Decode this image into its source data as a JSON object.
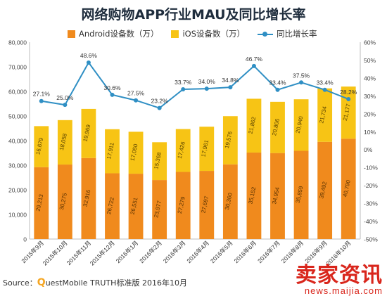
{
  "chart_data": {
    "type": "bar",
    "title": "网络购物APP行业MAU及同比增长率",
    "categories": [
      "2015年9月",
      "2015年10月",
      "2015年11月",
      "2015年12月",
      "2016年1月",
      "2016年2月",
      "2016年3月",
      "2016年4月",
      "2016年5月",
      "2016年6月",
      "2016年7月",
      "2016年8月",
      "2016年9月",
      "2016年10月"
    ],
    "series": [
      {
        "name": "Android设备数（万）",
        "kind": "bar",
        "color": "#f08a1d",
        "values": [
          29213,
          30275,
          32916,
          26722,
          26551,
          23977,
          27279,
          27697,
          30360,
          35152,
          34954,
          35859,
          39492,
          40790
        ]
      },
      {
        "name": "iOS设备数（万）",
        "kind": "bar",
        "color": "#f7c415",
        "values": [
          16679,
          18058,
          19969,
          17911,
          17050,
          15368,
          17426,
          17961,
          19576,
          21862,
          20806,
          20940,
          21734,
          21177
        ]
      },
      {
        "name": "同比增长率",
        "kind": "line",
        "axis": "right",
        "color": "#2f8fc4",
        "values": [
          27.1,
          25.0,
          48.6,
          30.6,
          27.5,
          23.2,
          33.7,
          34.0,
          34.8,
          46.7,
          33.4,
          37.5,
          33.4,
          28.2
        ]
      }
    ],
    "bar_value_labels": {
      "Android": [
        "29,213",
        "30,275",
        "32,916",
        "26,722",
        "26,551",
        "23,977",
        "27,279",
        "27,697",
        "30,360",
        "35,152",
        "34,954",
        "35,859",
        "39,492",
        "40,790"
      ],
      "iOS": [
        "16,679",
        "18,058",
        "19,969",
        "17,911",
        "17,050",
        "15,368",
        "17,426",
        "17,961",
        "19,576",
        "21,862",
        "20,806",
        "20,940",
        "21,734",
        "21,177"
      ]
    },
    "line_value_labels": [
      "27.1%",
      "25.0%",
      "48.6%",
      "30.6%",
      "27.5%",
      "23.2%",
      "33.7%",
      "34.0%",
      "34.8%",
      "46.7%",
      "33.4%",
      "37.5%",
      "33.4%",
      "28.2%"
    ],
    "ylim": [
      0,
      80000
    ],
    "y_ticks": [
      "0",
      "10,000",
      "20,000",
      "30,000",
      "40,000",
      "50,000",
      "60,000",
      "70,000",
      "80,000"
    ],
    "y2lim": [
      -50,
      60
    ],
    "y2_ticks": [
      "-50%",
      "-40%",
      "-30%",
      "-20%",
      "-10%",
      "0%",
      "10%",
      "20%",
      "30%",
      "40%",
      "50%",
      "60%"
    ],
    "grid": false,
    "legend": "top"
  },
  "source_prefix": "Source：",
  "source_q": "Q",
  "source_rest": "uestMobile TRUTH标准版 2016年10月",
  "watermark": {
    "main": "卖家资讯",
    "url": "news.maijia.com"
  }
}
